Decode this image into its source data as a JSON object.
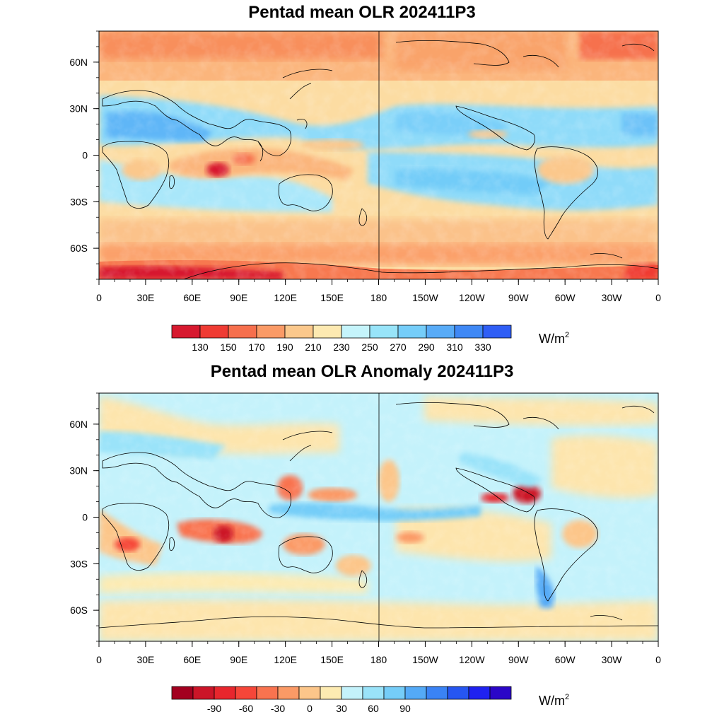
{
  "panels": [
    {
      "title": "Pentad mean OLR 202411P3",
      "lat_labels": [
        "60N",
        "30N",
        "0",
        "30S",
        "60S"
      ],
      "lat_values": [
        60,
        30,
        0,
        -30,
        -60
      ],
      "lon_labels": [
        "0",
        "30E",
        "60E",
        "90E",
        "120E",
        "150E",
        "180",
        "150W",
        "120W",
        "90W",
        "60W",
        "30W",
        "0"
      ],
      "colorbar": {
        "colors": [
          "#d7192f",
          "#ef3b33",
          "#f66f4d",
          "#fa9a66",
          "#fbc88c",
          "#fde9b1",
          "#c5f4fb",
          "#98e4f9",
          "#75cdf9",
          "#58abf7",
          "#3f88f5",
          "#2f5ef5"
        ],
        "labels": [
          "130",
          "150",
          "170",
          "190",
          "210",
          "230",
          "250",
          "270",
          "290",
          "310",
          "330"
        ],
        "unit": "W/m",
        "unit_sup": "2"
      }
    },
    {
      "title": "Pentad mean OLR Anomaly 202411P3",
      "lat_labels": [
        "60N",
        "30N",
        "0",
        "30S",
        "60S"
      ],
      "lat_values": [
        60,
        30,
        0,
        -30,
        -60
      ],
      "lon_labels": [
        "0",
        "30E",
        "60E",
        "90E",
        "120E",
        "150E",
        "180",
        "150W",
        "120W",
        "90W",
        "60W",
        "30W",
        "0"
      ],
      "colorbar": {
        "colors": [
          "#a3001f",
          "#cc1528",
          "#e8262d",
          "#f64639",
          "#f9734f",
          "#fb9a66",
          "#fcc68a",
          "#fdebb2",
          "#c4f2fb",
          "#9ae3f9",
          "#75cdf8",
          "#54aaf7",
          "#3a83f5",
          "#2656f1",
          "#1f22f0",
          "#2b06c8"
        ],
        "labels": [
          "-90",
          "-60",
          "-30",
          "0",
          "30",
          "60",
          "90"
        ],
        "label_positions": [
          2,
          5,
          8,
          11,
          14,
          17,
          20
        ],
        "unit": "W/m",
        "unit_sup": "2"
      }
    }
  ]
}
